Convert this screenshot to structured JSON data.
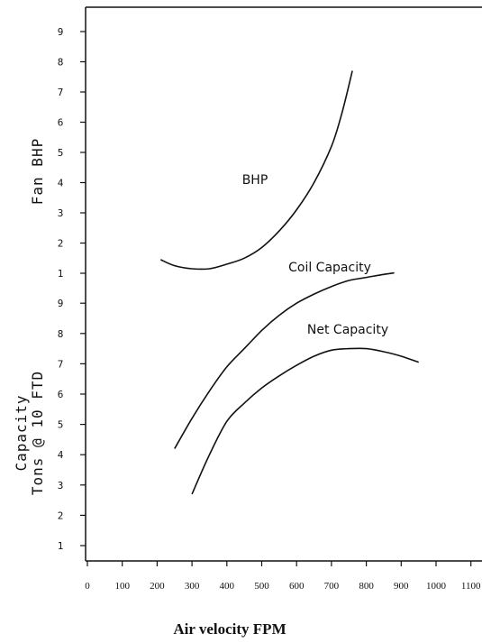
{
  "chart_data": {
    "type": "line",
    "xlabel": "Air velocity FPM",
    "x_ticks": [
      "0",
      "100",
      "200",
      "300",
      "400",
      "500",
      "600",
      "700",
      "800",
      "900",
      "1000",
      "1100"
    ],
    "xlim": [
      0,
      1100
    ],
    "upper_axis": {
      "label": "Fan BHP",
      "ticks": [
        "1",
        "2",
        "3",
        "4",
        "5",
        "6",
        "7",
        "8",
        "9"
      ],
      "ylim": [
        1,
        9
      ]
    },
    "lower_axis": {
      "label_lines": [
        "Capacity",
        "Tons @ 10 FTD"
      ],
      "ticks": [
        "1",
        "2",
        "3",
        "4",
        "5",
        "6",
        "7",
        "8",
        "9"
      ],
      "ylim": [
        1,
        9
      ]
    },
    "series": [
      {
        "name": "BHP",
        "axis": "upper",
        "x": [
          210,
          250,
          300,
          350,
          400,
          450,
          500,
          550,
          600,
          650,
          700,
          730,
          760
        ],
        "y": [
          1.45,
          1.25,
          1.15,
          1.15,
          1.3,
          1.5,
          1.85,
          2.4,
          3.1,
          4.0,
          5.2,
          6.3,
          7.7
        ]
      },
      {
        "name": "Coil Capacity",
        "axis": "lower",
        "x": [
          250,
          300,
          350,
          400,
          450,
          500,
          550,
          600,
          650,
          700,
          750,
          800,
          850,
          880
        ],
        "y": [
          4.2,
          5.2,
          6.1,
          6.9,
          7.5,
          8.1,
          8.6,
          9.0,
          9.3,
          9.55,
          9.75,
          9.85,
          9.95,
          10.0
        ]
      },
      {
        "name": "Net Capacity",
        "axis": "lower",
        "x": [
          300,
          350,
          400,
          450,
          500,
          550,
          600,
          650,
          700,
          750,
          800,
          850,
          900,
          950
        ],
        "y": [
          2.7,
          4.0,
          5.1,
          5.7,
          6.2,
          6.6,
          6.95,
          7.25,
          7.45,
          7.5,
          7.5,
          7.4,
          7.25,
          7.05
        ]
      }
    ]
  }
}
